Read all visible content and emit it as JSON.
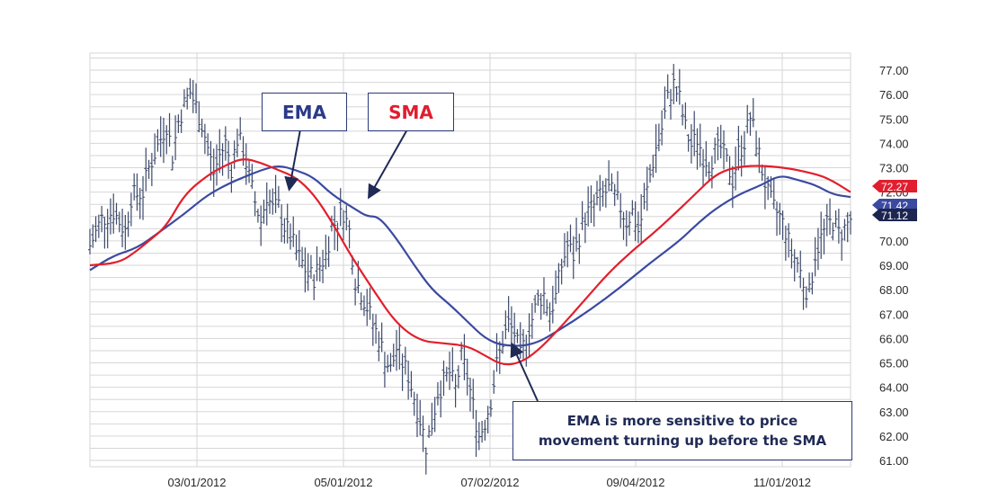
{
  "chart_data": {
    "type": "line",
    "subtype": "ohlc-bar-with-moving-averages",
    "title": "",
    "xlabel": "",
    "ylabel": "",
    "ylim": [
      61,
      77.5
    ],
    "y_ticks": [
      "61.00",
      "62.00",
      "63.00",
      "64.00",
      "65.00",
      "66.00",
      "67.00",
      "68.00",
      "69.00",
      "70.00",
      "71.00",
      "72.00",
      "73.00",
      "74.00",
      "75.00",
      "76.00",
      "77.00"
    ],
    "x_ticks": [
      "03/01/2012",
      "05/01/2012",
      "07/02/2012",
      "09/04/2012",
      "11/01/2012"
    ],
    "grid": true,
    "series": [
      {
        "name": "EMA",
        "color": "#3b4aa0",
        "points": [
          [
            0,
            68.8
          ],
          [
            8,
            69.4
          ],
          [
            16,
            69.7
          ],
          [
            24,
            70.4
          ],
          [
            32,
            71.1
          ],
          [
            40,
            71.9
          ],
          [
            48,
            72.4
          ],
          [
            52,
            72.6
          ],
          [
            58,
            72.9
          ],
          [
            64,
            73.1
          ],
          [
            70,
            72.9
          ],
          [
            76,
            72.6
          ],
          [
            82,
            71.9
          ],
          [
            90,
            71.3
          ],
          [
            94,
            71.0
          ],
          [
            98,
            71.0
          ],
          [
            104,
            70.1
          ],
          [
            110,
            69.0
          ],
          [
            116,
            68.0
          ],
          [
            122,
            67.4
          ],
          [
            128,
            66.7
          ],
          [
            134,
            66.0
          ],
          [
            140,
            65.7
          ],
          [
            150,
            65.7
          ],
          [
            160,
            66.4
          ],
          [
            170,
            67.2
          ],
          [
            180,
            68.1
          ],
          [
            190,
            69.1
          ],
          [
            200,
            70.0
          ],
          [
            206,
            70.7
          ],
          [
            212,
            71.3
          ],
          [
            220,
            71.9
          ],
          [
            228,
            72.3
          ],
          [
            234,
            72.7
          ],
          [
            240,
            72.5
          ],
          [
            246,
            72.3
          ],
          [
            252,
            71.9
          ],
          [
            258,
            71.8
          ]
        ]
      },
      {
        "name": "SMA",
        "color": "#e21f2c",
        "points": [
          [
            0,
            69.0
          ],
          [
            10,
            69.1
          ],
          [
            16,
            69.6
          ],
          [
            20,
            70.0
          ],
          [
            26,
            70.6
          ],
          [
            32,
            71.9
          ],
          [
            40,
            72.7
          ],
          [
            46,
            73.1
          ],
          [
            52,
            73.4
          ],
          [
            58,
            73.2
          ],
          [
            64,
            72.9
          ],
          [
            70,
            72.6
          ],
          [
            76,
            71.9
          ],
          [
            82,
            70.8
          ],
          [
            88,
            69.5
          ],
          [
            96,
            68.0
          ],
          [
            104,
            66.6
          ],
          [
            112,
            65.9
          ],
          [
            120,
            65.8
          ],
          [
            128,
            65.7
          ],
          [
            134,
            65.3
          ],
          [
            140,
            64.9
          ],
          [
            146,
            65.0
          ],
          [
            152,
            65.5
          ],
          [
            160,
            66.5
          ],
          [
            168,
            67.6
          ],
          [
            176,
            68.7
          ],
          [
            184,
            69.6
          ],
          [
            192,
            70.4
          ],
          [
            200,
            71.3
          ],
          [
            206,
            72.0
          ],
          [
            212,
            72.7
          ],
          [
            218,
            73.0
          ],
          [
            226,
            73.1
          ],
          [
            236,
            73.0
          ],
          [
            244,
            72.8
          ],
          [
            250,
            72.6
          ],
          [
            258,
            72.0
          ]
        ]
      }
    ],
    "price_bars": {
      "color": "#3d4a6b",
      "path": [
        [
          0,
          69.8
        ],
        [
          4,
          70.9
        ],
        [
          8,
          71.2
        ],
        [
          12,
          70.4
        ],
        [
          14,
          71.8
        ],
        [
          18,
          72.0
        ],
        [
          20,
          73.0
        ],
        [
          24,
          74.2
        ],
        [
          26,
          74.8
        ],
        [
          28,
          73.5
        ],
        [
          30,
          74.9
        ],
        [
          32,
          75.6
        ],
        [
          34,
          76.1
        ],
        [
          36,
          75.5
        ],
        [
          38,
          74.8
        ],
        [
          40,
          73.8
        ],
        [
          42,
          72.8
        ],
        [
          44,
          73.5
        ],
        [
          46,
          74.0
        ],
        [
          48,
          73.0
        ],
        [
          50,
          74.2
        ],
        [
          52,
          73.8
        ],
        [
          54,
          72.6
        ],
        [
          56,
          71.6
        ],
        [
          58,
          70.8
        ],
        [
          60,
          71.9
        ],
        [
          62,
          71.3
        ],
        [
          64,
          71.4
        ],
        [
          66,
          70.6
        ],
        [
          68,
          70.2
        ],
        [
          70,
          69.5
        ],
        [
          72,
          69.1
        ],
        [
          74,
          68.6
        ],
        [
          76,
          68.5
        ],
        [
          78,
          69.0
        ],
        [
          80,
          69.4
        ],
        [
          82,
          70.6
        ],
        [
          84,
          70.8
        ],
        [
          86,
          71.2
        ],
        [
          88,
          70.4
        ],
        [
          90,
          68.4
        ],
        [
          92,
          67.9
        ],
        [
          94,
          67.3
        ],
        [
          96,
          66.6
        ],
        [
          98,
          66.0
        ],
        [
          100,
          65.2
        ],
        [
          102,
          64.7
        ],
        [
          104,
          65.6
        ],
        [
          106,
          65.0
        ],
        [
          108,
          64.5
        ],
        [
          110,
          63.6
        ],
        [
          112,
          62.7
        ],
        [
          114,
          61.6
        ],
        [
          116,
          62.5
        ],
        [
          118,
          63.8
        ],
        [
          120,
          64.2
        ],
        [
          122,
          64.6
        ],
        [
          124,
          63.9
        ],
        [
          126,
          65.2
        ],
        [
          128,
          64.5
        ],
        [
          130,
          63.2
        ],
        [
          132,
          62.0
        ],
        [
          134,
          62.6
        ],
        [
          136,
          63.5
        ],
        [
          138,
          64.9
        ],
        [
          140,
          65.9
        ],
        [
          142,
          66.6
        ],
        [
          144,
          66.2
        ],
        [
          146,
          65.2
        ],
        [
          148,
          66.1
        ],
        [
          150,
          66.8
        ],
        [
          152,
          67.6
        ],
        [
          154,
          67.8
        ],
        [
          156,
          67.1
        ],
        [
          158,
          67.7
        ],
        [
          160,
          69.0
        ],
        [
          162,
          69.8
        ],
        [
          164,
          69.4
        ],
        [
          166,
          70.2
        ],
        [
          168,
          71.0
        ],
        [
          170,
          71.3
        ],
        [
          172,
          71.6
        ],
        [
          174,
          71.9
        ],
        [
          176,
          72.1
        ],
        [
          178,
          71.8
        ],
        [
          180,
          71.4
        ],
        [
          182,
          70.8
        ],
        [
          184,
          71.2
        ],
        [
          186,
          70.4
        ],
        [
          188,
          71.4
        ],
        [
          190,
          72.7
        ],
        [
          192,
          73.8
        ],
        [
          194,
          74.6
        ],
        [
          196,
          75.8
        ],
        [
          198,
          76.4
        ],
        [
          200,
          75.8
        ],
        [
          202,
          74.6
        ],
        [
          204,
          73.9
        ],
        [
          206,
          74.2
        ],
        [
          208,
          73.5
        ],
        [
          210,
          73.2
        ],
        [
          212,
          73.6
        ],
        [
          214,
          73.8
        ],
        [
          216,
          73.2
        ],
        [
          218,
          72.5
        ],
        [
          220,
          73.6
        ],
        [
          222,
          74.1
        ],
        [
          224,
          75.1
        ],
        [
          226,
          74.1
        ],
        [
          228,
          72.9
        ],
        [
          230,
          71.9
        ],
        [
          232,
          71.3
        ],
        [
          234,
          71.0
        ],
        [
          236,
          70.4
        ],
        [
          238,
          69.5
        ],
        [
          240,
          69.1
        ],
        [
          242,
          68.3
        ],
        [
          244,
          67.8
        ],
        [
          246,
          69.5
        ],
        [
          248,
          70.1
        ],
        [
          250,
          70.6
        ],
        [
          252,
          70.8
        ],
        [
          254,
          70.3
        ],
        [
          256,
          70.5
        ],
        [
          258,
          70.9
        ]
      ]
    },
    "price_labels": [
      {
        "value": 72.27,
        "text": "72.27",
        "color": "#e01e2e"
      },
      {
        "value": 71.42,
        "text": "71.42",
        "color": "#3b4aa0"
      },
      {
        "value": 71.12,
        "text": "71.12",
        "color": "#1c254f"
      }
    ]
  },
  "callouts": {
    "ema_label": "EMA",
    "sma_label": "SMA",
    "note_line1": "EMA is more sensitive to price",
    "note_line2": "movement turning up before the SMA"
  }
}
